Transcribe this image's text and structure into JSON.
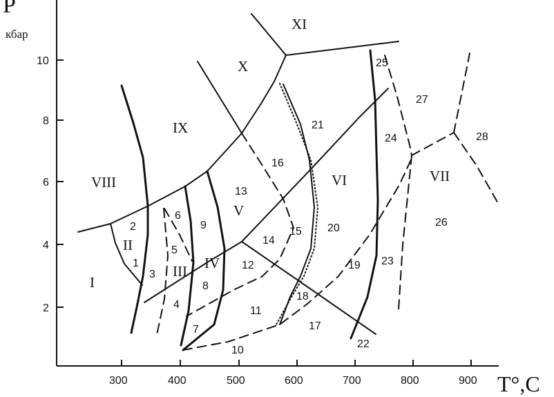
{
  "axes": {
    "y_symbol": "P",
    "y_unit": "кбар",
    "x_label": "T°,C",
    "y_ticks": [
      "2",
      "4",
      "6",
      "8",
      "10"
    ],
    "x_ticks": [
      "300",
      "400",
      "500",
      "600",
      "700",
      "800",
      "900"
    ]
  },
  "fields_roman": [
    "I",
    "II",
    "III",
    "IV",
    "V",
    "VI",
    "VII",
    "VIII",
    "IX",
    "X",
    "XI"
  ],
  "fields_numeric": [
    "1",
    "2",
    "3",
    "4",
    "5",
    "6",
    "7",
    "8",
    "9",
    "10",
    "11",
    "12",
    "13",
    "14",
    "15",
    "16",
    "17",
    "18",
    "19",
    "20",
    "21",
    "22",
    "23",
    "24",
    "25",
    "26",
    "27",
    "28"
  ]
}
